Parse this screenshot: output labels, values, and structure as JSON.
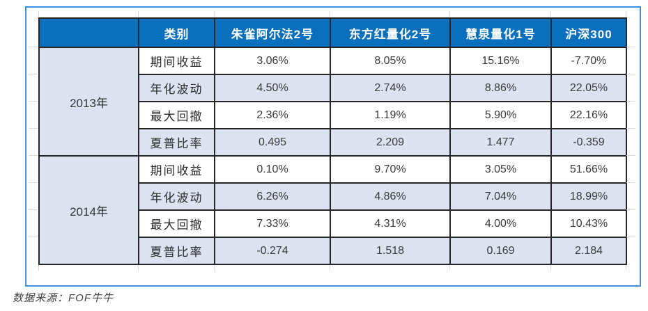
{
  "colors": {
    "frame_border": "#3b91dc",
    "header_bg": "#0a6fbd",
    "header_text": "#ffffff",
    "stripe_bg": "#dce2ef",
    "plain_bg": "#ffffff",
    "cell_border": "#262626",
    "body_text": "#3a3a3a",
    "footer_text": "#3f3f3f"
  },
  "source_note": "数据来源：FOF牛牛",
  "chart_data": {
    "type": "table",
    "columns": [
      "",
      "类别",
      "朱雀阿尔法2号",
      "东方红量化2号",
      "慧泉量化1号",
      "沪深300"
    ],
    "groups": [
      {
        "period": "2013年",
        "rows": [
          {
            "metric": "期间收益",
            "values": [
              "3.06%",
              "8.05%",
              "15.16%",
              "-7.70%"
            ]
          },
          {
            "metric": "年化波动",
            "values": [
              "4.50%",
              "2.74%",
              "8.86%",
              "22.05%"
            ]
          },
          {
            "metric": "最大回撤",
            "values": [
              "2.36%",
              "1.19%",
              "5.90%",
              "22.16%"
            ]
          },
          {
            "metric": "夏普比率",
            "values": [
              "0.495",
              "2.209",
              "1.477",
              "-0.359"
            ]
          }
        ]
      },
      {
        "period": "2014年",
        "rows": [
          {
            "metric": "期间收益",
            "values": [
              "0.10%",
              "9.70%",
              "3.05%",
              "51.66%"
            ]
          },
          {
            "metric": "年化波动",
            "values": [
              "6.26%",
              "4.86%",
              "7.04%",
              "18.99%"
            ]
          },
          {
            "metric": "最大回撤",
            "values": [
              "7.33%",
              "4.31%",
              "4.00%",
              "10.43%"
            ]
          },
          {
            "metric": "夏普比率",
            "values": [
              "-0.274",
              "1.518",
              "0.169",
              "2.184"
            ]
          }
        ]
      }
    ]
  }
}
